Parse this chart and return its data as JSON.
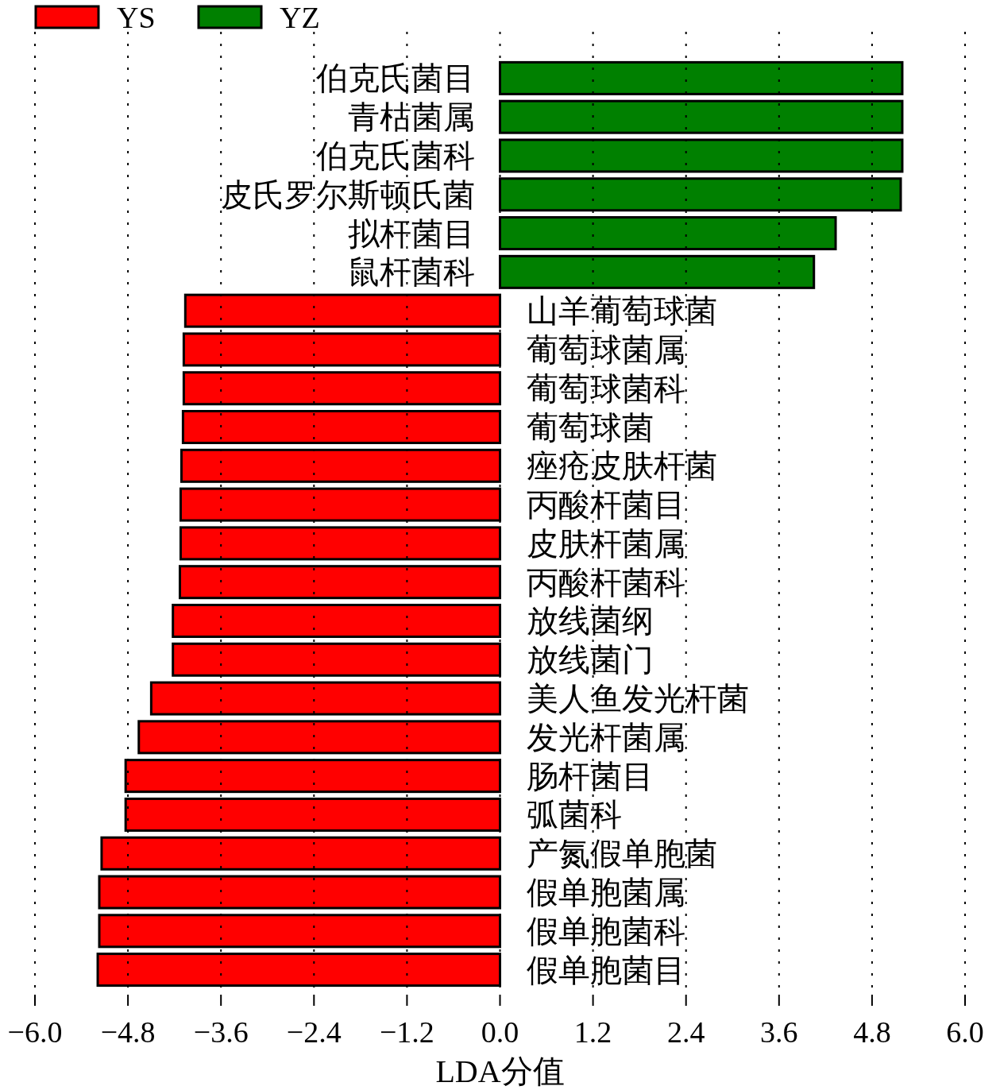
{
  "chart_data": {
    "type": "bar",
    "orientation": "horizontal",
    "categories": [
      "伯克氏菌目",
      "青枯菌属",
      "伯克氏菌科",
      "皮氏罗尔斯顿氏菌",
      "拟杆菌目",
      "鼠杆菌科",
      "山羊葡萄球菌",
      "葡萄球菌属",
      "葡萄球菌科",
      "葡萄球菌",
      "痤疮皮肤杆菌",
      "丙酸杆菌目",
      "皮肤杆菌属",
      "丙酸杆菌科",
      "放线菌纲",
      "放线菌门",
      "美人鱼发光杆菌",
      "发光杆菌属",
      "肠杆菌目",
      "弧菌科",
      "产氮假单胞菌",
      "假单胞菌属",
      "假单胞菌科",
      "假单胞菌目"
    ],
    "series": [
      {
        "name": "YS",
        "color": "#ff0000",
        "values": [
          null,
          null,
          null,
          null,
          null,
          null,
          -4.06,
          -4.08,
          -4.08,
          -4.09,
          -4.11,
          -4.12,
          -4.12,
          -4.13,
          -4.22,
          -4.22,
          -4.5,
          -4.66,
          -4.83,
          -4.83,
          -5.14,
          -5.17,
          -5.17,
          -5.19
        ]
      },
      {
        "name": "YZ",
        "color": "#008000",
        "values": [
          5.19,
          5.19,
          5.19,
          5.17,
          4.33,
          4.05,
          null,
          null,
          null,
          null,
          null,
          null,
          null,
          null,
          null,
          null,
          null,
          null,
          null,
          null,
          null,
          null,
          null,
          null
        ]
      }
    ],
    "xlim": [
      -6,
      6
    ],
    "xticks": [
      {
        "value": -6,
        "label": "−6.0"
      },
      {
        "value": -4.8,
        "label": "−4.8"
      },
      {
        "value": -3.6,
        "label": "−3.6"
      },
      {
        "value": -2.4,
        "label": "−2.4"
      },
      {
        "value": -1.2,
        "label": "−1.2"
      },
      {
        "value": 0,
        "label": "0.0"
      },
      {
        "value": 1.2,
        "label": "1.2"
      },
      {
        "value": 2.4,
        "label": "2.4"
      },
      {
        "value": 3.6,
        "label": "3.6"
      },
      {
        "value": 4.8,
        "label": "4.8"
      },
      {
        "value": 6,
        "label": "6.0"
      }
    ],
    "xlabel": "LDA分值",
    "grid": "x",
    "legend": "top left"
  }
}
